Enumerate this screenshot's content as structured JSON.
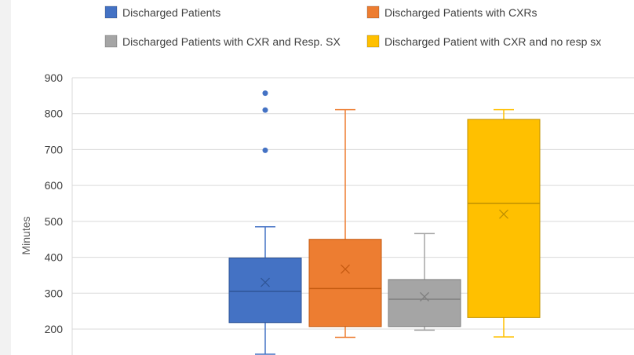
{
  "chart_data": {
    "type": "box",
    "ylabel": "Minutes",
    "yticks": [
      200,
      300,
      400,
      500,
      600,
      700,
      800,
      900
    ],
    "ylim": [
      170,
      900
    ],
    "grid": true,
    "legend_position": "top",
    "series": [
      {
        "name": "Discharged Patients",
        "color": "#4472C4",
        "min": 130,
        "q1": 218,
        "median": 305,
        "q3": 398,
        "max": 485,
        "mean": 330,
        "outliers": [
          698,
          810,
          857
        ]
      },
      {
        "name": "Discharged Patients with CXRs",
        "color": "#ED7D31",
        "min": 177,
        "q1": 207,
        "median": 313,
        "q3": 450,
        "max": 811,
        "mean": 367,
        "outliers": []
      },
      {
        "name": "Discharged Patients with CXR and Resp. SX",
        "color": "#A5A5A5",
        "min": 197,
        "q1": 207,
        "median": 283,
        "q3": 338,
        "max": 466,
        "mean": 290,
        "outliers": []
      },
      {
        "name": "Discharged Patient with CXR and no resp sx",
        "color": "#FFC000",
        "min": 178,
        "q1": 232,
        "median": 550,
        "q3": 784,
        "max": 811,
        "mean": 520,
        "outliers": []
      }
    ]
  }
}
